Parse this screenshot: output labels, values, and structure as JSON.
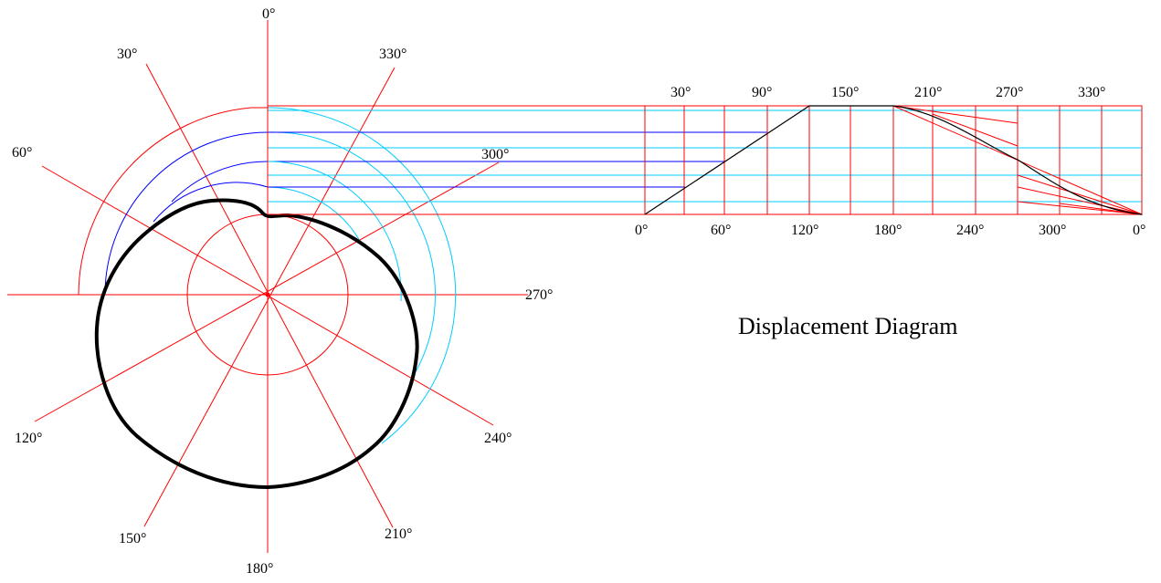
{
  "colors": {
    "construction": "#ff0000",
    "projection": "#00ccff",
    "blue_curve": "#0000ff",
    "profile": "#000000",
    "background": "#ffffff"
  },
  "polar_labels": {
    "a0": "0°",
    "a30": "30°",
    "a60": "60°",
    "a120": "120°",
    "a150": "150°",
    "a180": "180°",
    "a210": "210°",
    "a240": "240°",
    "a270": "270°",
    "a300": "300°",
    "a330": "330°"
  },
  "displacement_top_labels": [
    "30°",
    "90°",
    "150°",
    "210°",
    "270°",
    "330°"
  ],
  "displacement_bottom_labels": [
    "0°",
    "60°",
    "120°",
    "180°",
    "240°",
    "300°",
    "0°"
  ],
  "diagram_title": "Displacement Diagram"
}
